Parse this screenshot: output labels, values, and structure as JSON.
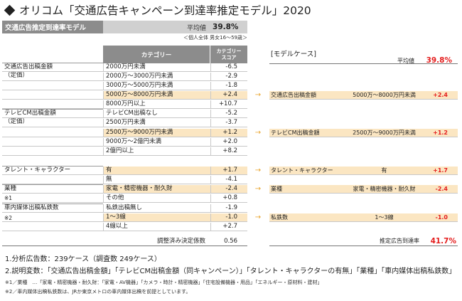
{
  "title": "オリコム「交通広告キャンペーン到達率推定モデル」2020",
  "header": {
    "model_name": "交通広告推定到達率モデル",
    "avg_label": "平均値",
    "avg_value": "39.8%"
  },
  "subject_note": "＜個人全体 男女16～59歳＞",
  "columns": {
    "category": "カテゴリー",
    "score_line1": "カテゴリー",
    "score_line2": "スコア"
  },
  "groups": [
    {
      "label": "交通広告出稿金額",
      "sub": "（定価）"
    },
    {
      "label": "テレビCM出稿金額",
      "sub": "（定価）"
    },
    {
      "label": "タレント・キャラクター",
      "sub": ""
    },
    {
      "label": "業種",
      "sub": "※1"
    },
    {
      "label": "車内媒体出稿私鉄数",
      "sub": "※2"
    }
  ],
  "rows": [
    {
      "category": "2000万円未満",
      "score": "-6.5"
    },
    {
      "category": "2000万～3000万円未満",
      "score": "-2.9"
    },
    {
      "category": "3000万～5000万円未満",
      "score": "-1.8"
    },
    {
      "category": "5000万～8000万円未満",
      "score": "+2.4"
    },
    {
      "category": "8000万円以上",
      "score": "+10.7"
    },
    {
      "category": "テレビCM出稿なし",
      "score": "-5.2"
    },
    {
      "category": "2500万円未満",
      "score": "-3.7"
    },
    {
      "category": "2500万～9000万円未満",
      "score": "+1.2"
    },
    {
      "category": "9000万～2億円未満",
      "score": "+2.0"
    },
    {
      "category": "2億円以上",
      "score": "+8.2"
    },
    {
      "category": "有",
      "score": "+1.7"
    },
    {
      "category": "無",
      "score": "-4.1"
    },
    {
      "category": "家電・精密機器・耐久財",
      "score": "-2.4"
    },
    {
      "category": "その他",
      "score": "+0.8"
    },
    {
      "category": "私鉄出稿無し",
      "score": "-1.9"
    },
    {
      "category": "1～3線",
      "score": "-1.0"
    },
    {
      "category": "4線以上",
      "score": "+2.7"
    }
  ],
  "adjusted": {
    "label": "調整済み決定係数",
    "value": "0.56"
  },
  "model_case": {
    "title": "[モデルケース]",
    "avg_label": "平均値",
    "avg_value": "39.8%",
    "arrow": "→",
    "items": [
      {
        "category": "交通広告出稿金額",
        "option": "5000万～8000万円未満",
        "score": "+2.4"
      },
      {
        "category": "テレビCM出稿金額",
        "option": "2500万～9000万円未満",
        "score": "+1.2"
      },
      {
        "category": "タレント・キャラクター",
        "option": "有",
        "score": "+1.7"
      },
      {
        "category": "業種",
        "option": "家電・精密機器・耐久財",
        "score": "-2.4"
      },
      {
        "category": "私鉄数",
        "option": "1～3線",
        "score": "-1.0"
      }
    ],
    "final_label": "推定広告到達率",
    "final_value": "41.7%"
  },
  "notes": {
    "n1": "1.分析広告数：239ケース（調査数 249ケース）",
    "n2": "2.説明変数：「交通広告出稿金額」「テレビCM出稿金額（同キャンペーン）」「タレント・キャラクターの有無」「業種」「車内媒体出稿私鉄数」",
    "f1": "※1／業種　…「家電・精密機器・耐久財：「家電・AV機器」「カメラ・時計・精密機器」「住宅設備機器・用品」「エネルギー・原材料・建材」",
    "f2": "※2／車内媒体出稿私鉄数は、JRか東京メトロの車内媒体出稿を前提としています。"
  }
}
